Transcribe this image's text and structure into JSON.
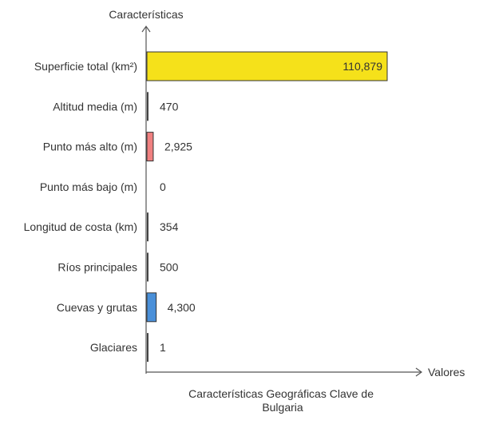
{
  "chart_data": {
    "type": "bar",
    "orientation": "horizontal",
    "title": "Características Geográficas Clave de Bulgaria",
    "title_lines": [
      "Características Geográficas Clave de",
      "Bulgaria"
    ],
    "xlabel": "Valores",
    "ylabel": "Características",
    "categories": [
      "Superficie total (km²)",
      "Altitud media (m)",
      "Punto más alto (m)",
      "Punto más bajo (m)",
      "Longitud de costa (km)",
      "Ríos principales",
      "Cuevas y grutas",
      "Glaciares"
    ],
    "values": [
      110879,
      470,
      2925,
      0,
      354,
      500,
      4300,
      1
    ],
    "value_labels": [
      "110,879",
      "470",
      "2,925",
      "0",
      "354",
      "500",
      "4,300",
      "1"
    ],
    "bar_colors": [
      "#f5e11a",
      "#444444",
      "#f08080",
      "#444444",
      "#444444",
      "#444444",
      "#4a90d9",
      "#444444"
    ],
    "xlim": [
      0,
      110879
    ],
    "grid": false,
    "legend": "none"
  }
}
